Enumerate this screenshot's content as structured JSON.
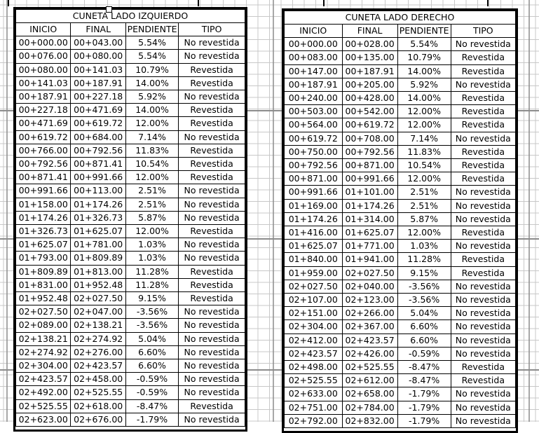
{
  "left_table": {
    "title": "CUNETA LADO IZQUIERDO",
    "headers": [
      "INICIO",
      "FINAL",
      "PENDIENTE",
      "TIPO"
    ],
    "rows": [
      [
        "00+000.00",
        "00+043.00",
        "5.54%",
        "No revestida"
      ],
      [
        "00+076.00",
        "00+080.00",
        "5.54%",
        "No revestida"
      ],
      [
        "00+080.00",
        "00+141.03",
        "10.79%",
        "Revestida"
      ],
      [
        "00+141.03",
        "00+187.91",
        "14.00%",
        "Revestida"
      ],
      [
        "00+187.91",
        "00+227.18",
        "5.92%",
        "No revestida"
      ],
      [
        "00+227.18",
        "00+471.69",
        "14.00%",
        "Revestida"
      ],
      [
        "00+471.69",
        "00+619.72",
        "12.00%",
        "Revestida"
      ],
      [
        "00+619.72",
        "00+684.00",
        "7.14%",
        "No revestida"
      ],
      [
        "00+766.00",
        "00+792.56",
        "11.83%",
        "Revestida"
      ],
      [
        "00+792.56",
        "00+871.41",
        "10.54%",
        "Revestida"
      ],
      [
        "00+871.41",
        "00+991.66",
        "12.00%",
        "Revestida"
      ],
      [
        "00+991.66",
        "00+113.00",
        "2.51%",
        "No revestida"
      ],
      [
        "01+158.00",
        "01+174.26",
        "2.51%",
        "No revestida"
      ],
      [
        "01+174.26",
        "01+326.73",
        "5.87%",
        "No revestida"
      ],
      [
        "01+326.73",
        "01+625.07",
        "12.00%",
        "Revestida"
      ],
      [
        "01+625.07",
        "01+781.00",
        "1.03%",
        "No revestida"
      ],
      [
        "01+793.00",
        "01+809.89",
        "1.03%",
        "No revestida"
      ],
      [
        "01+809.89",
        "01+813.00",
        "11.28%",
        "Revestida"
      ],
      [
        "01+831.00",
        "01+952.48",
        "11.28%",
        "Revestida"
      ],
      [
        "01+952.48",
        "02+027.50",
        "9.15%",
        "Revestida"
      ],
      [
        "02+027.50",
        "02+047.00",
        "-3.56%",
        "No revestida"
      ],
      [
        "02+089.00",
        "02+138.21",
        "-3.56%",
        "No revestida"
      ],
      [
        "02+138.21",
        "02+274.92",
        "5.04%",
        "No revestida"
      ],
      [
        "02+274.92",
        "02+276.00",
        "6.60%",
        "No revestida"
      ],
      [
        "02+304.00",
        "02+423.57",
        "6.60%",
        "No revestida"
      ],
      [
        "02+423.57",
        "02+458.00",
        "-0.59%",
        "No revestida"
      ],
      [
        "02+492.00",
        "02+525.55",
        "-0.59%",
        "No revestida"
      ],
      [
        "02+525.55",
        "02+618.00",
        "-8.47%",
        "Revestida"
      ],
      [
        "02+623.00",
        "02+676.00",
        "-1.79%",
        "No revestida"
      ]
    ]
  },
  "right_table": {
    "title": "CUNETA LADO DERECHO",
    "headers": [
      "INICIO",
      "FINAL",
      "PENDIENTE",
      "TIPO"
    ],
    "rows": [
      [
        "00+000.00",
        "00+028.00",
        "5.54%",
        "No revestida"
      ],
      [
        "00+083.00",
        "00+135.00",
        "10.79%",
        "Revestida"
      ],
      [
        "00+147.00",
        "00+187.91",
        "14.00%",
        "Revestida"
      ],
      [
        "00+187.91",
        "00+205.00",
        "5.92%",
        "No revestida"
      ],
      [
        "00+240.00",
        "00+428.00",
        "14.00%",
        "Revestida"
      ],
      [
        "00+503.00",
        "00+542.00",
        "12.00%",
        "Revestida"
      ],
      [
        "00+564.00",
        "00+619.72",
        "12.00%",
        "Revestida"
      ],
      [
        "00+619.72",
        "00+708.00",
        "7.14%",
        "No revestida"
      ],
      [
        "00+750.00",
        "00+792.56",
        "11.83%",
        "Revestida"
      ],
      [
        "00+792.56",
        "00+871.00",
        "10.54%",
        "Revestida"
      ],
      [
        "00+871.00",
        "00+991.66",
        "12.00%",
        "Revestida"
      ],
      [
        "00+991.66",
        "01+101.00",
        "2.51%",
        "No revestida"
      ],
      [
        "01+169.00",
        "01+174.26",
        "2.51%",
        "No revestida"
      ],
      [
        "01+174.26",
        "01+314.00",
        "5.87%",
        "No revestida"
      ],
      [
        "01+416.00",
        "01+625.07",
        "12.00%",
        "Revestida"
      ],
      [
        "01+625.07",
        "01+771.00",
        "1.03%",
        "No revestida"
      ],
      [
        "01+840.00",
        "01+941.00",
        "11.28%",
        "Revestida"
      ],
      [
        "01+959.00",
        "02+027.50",
        "9.15%",
        "Revestida"
      ],
      [
        "02+027.50",
        "02+040.00",
        "-3.56%",
        "No revestida"
      ],
      [
        "02+107.00",
        "02+123.00",
        "-3.56%",
        "No revestida"
      ],
      [
        "02+151.00",
        "02+266.00",
        "5.04%",
        "No revestida"
      ],
      [
        "02+304.00",
        "02+367.00",
        "6.60%",
        "No revestida"
      ],
      [
        "02+412.00",
        "02+423.57",
        "6.60%",
        "No revestida"
      ],
      [
        "02+423.57",
        "02+426.00",
        "-0.59%",
        "No revestida"
      ],
      [
        "02+498.00",
        "02+525.55",
        "-8.47%",
        "Revestida"
      ],
      [
        "02+525.55",
        "02+612.00",
        "-8.47%",
        "Revestida"
      ],
      [
        "02+633.00",
        "02+658.00",
        "-1.79%",
        "No revestida"
      ],
      [
        "02+751.00",
        "02+784.00",
        "-1.79%",
        "No revestida"
      ],
      [
        "02+792.00",
        "02+832.00",
        "-1.79%",
        "No revestida"
      ]
    ]
  },
  "colors": {
    "grid": "#c8c8c8",
    "grid_major": "#8c8c8c",
    "border": "#000000"
  }
}
